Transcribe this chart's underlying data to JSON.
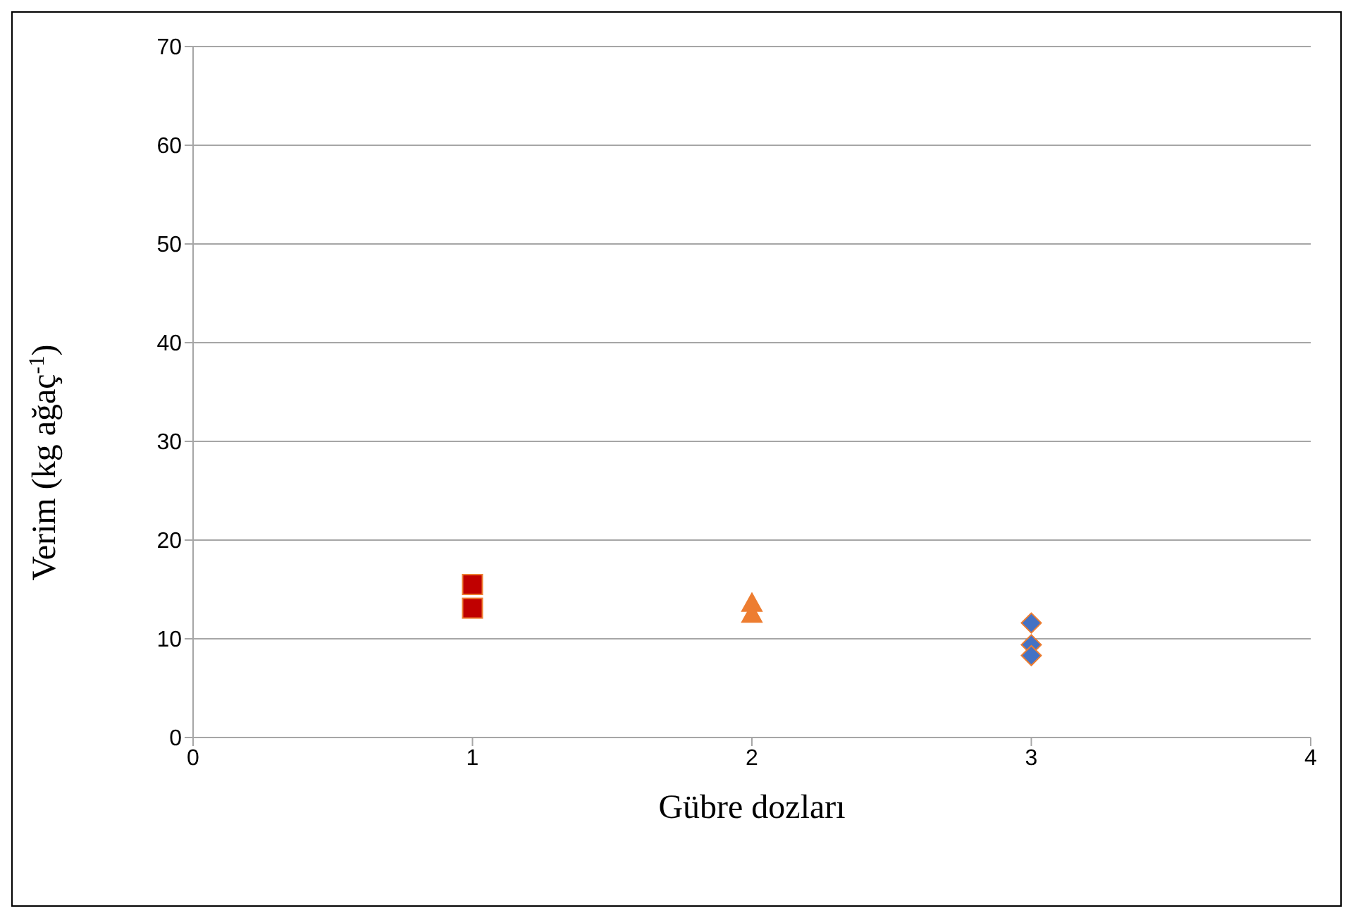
{
  "chart_data": {
    "type": "scatter",
    "xlabel": "Gübre dozları",
    "ylabel": "Verim (kg ağaç$^{-1}$)",
    "xlim": [
      0,
      4
    ],
    "xticks": [
      0,
      1,
      2,
      3,
      4
    ],
    "ylim": [
      0,
      70
    ],
    "yticks": [
      0,
      10,
      20,
      30,
      40,
      50,
      60,
      70
    ],
    "grid": "y",
    "legend": false,
    "series": [
      {
        "color": "#c00000",
        "marker": "square",
        "x": [
          1,
          1
        ],
        "values": [
          15.5,
          13.1
        ]
      },
      {
        "color": "#ed7d31",
        "marker": "triangle",
        "x": [
          2,
          2
        ],
        "values": [
          13.6,
          12.5
        ]
      },
      {
        "color": "#4472c4",
        "marker": "diamond",
        "x": [
          3,
          3,
          3
        ],
        "values": [
          11.6,
          9.4,
          8.3
        ]
      }
    ]
  }
}
